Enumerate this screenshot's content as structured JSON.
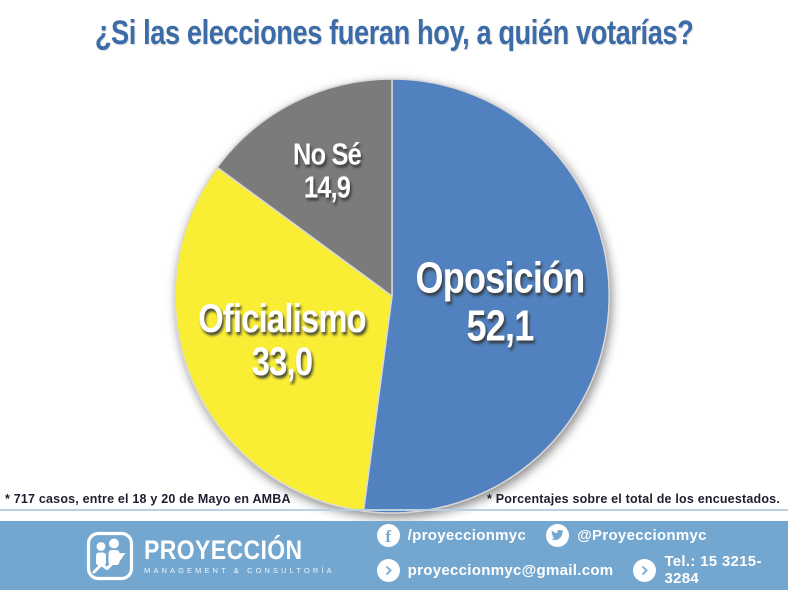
{
  "title": "¿Si las elecciones fueran hoy, a quién votarías?",
  "chart_data": {
    "type": "pie",
    "title": "¿Si las elecciones fueran hoy, a quién votarías?",
    "series": [
      {
        "name": "Oposición",
        "value": 52.1,
        "label_value": "52,1",
        "color": "#5181be"
      },
      {
        "name": "Oficialismo",
        "value": 33.0,
        "label_value": "33,0",
        "color": "#f9ee33"
      },
      {
        "name": "No Sé",
        "value": 14.9,
        "label_value": "14,9",
        "color": "#7b7b7b"
      }
    ],
    "start_angle_deg": 0,
    "direction": "clockwise",
    "legend": "none",
    "labels_on_slices": true
  },
  "footnotes": {
    "left": "* 717 casos, entre el 18 y 20 de Mayo en AMBA",
    "right": "* Porcentajes sobre el total de los encuestados."
  },
  "footer": {
    "brand": {
      "name": "PROYECCIÓN",
      "tagline": "MANAGEMENT & CONSULTORÍA",
      "logo_icon": "people-growth-arrow-icon"
    },
    "contacts": [
      {
        "icon": "facebook-icon",
        "label": "/proyeccionmyc"
      },
      {
        "icon": "twitter-icon",
        "label": "@Proyeccionmyc"
      },
      {
        "icon": "chevron-right-icon",
        "label": "proyeccionmyc@gmail.com"
      },
      {
        "icon": "chevron-right-icon",
        "label": "Tel.: 15 3215-3284"
      }
    ]
  },
  "colors": {
    "title_text": "#3c6ca8",
    "footer_bar": "#74a7cf",
    "footnote_text": "#1e1e30",
    "slice_blue": "#5181be",
    "slice_yellow": "#f9ee33",
    "slice_gray": "#7b7b7b"
  }
}
